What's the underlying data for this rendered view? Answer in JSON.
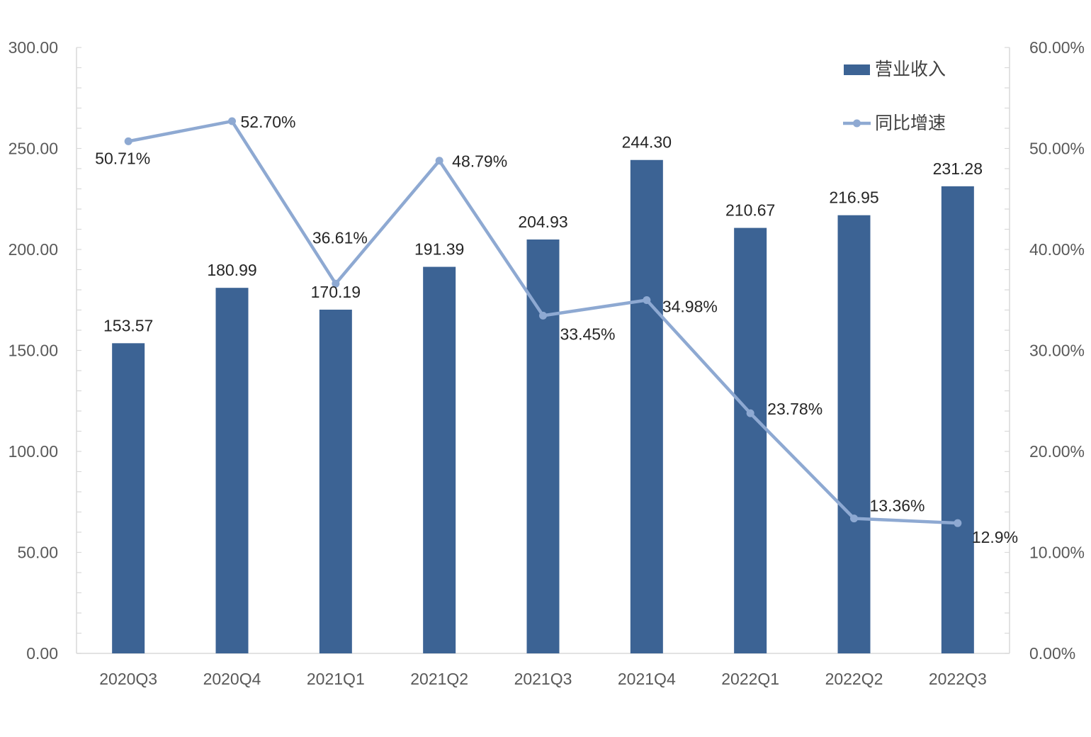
{
  "chart_data": {
    "type": "bar+line",
    "title": "",
    "categories": [
      "2020Q3",
      "2020Q4",
      "2021Q1",
      "2021Q2",
      "2021Q3",
      "2021Q4",
      "2022Q1",
      "2022Q2",
      "2022Q3"
    ],
    "series": [
      {
        "name": "营业收入",
        "type": "bar",
        "axis": "left",
        "color": "#3C6394",
        "values": [
          153.57,
          180.99,
          170.19,
          191.39,
          204.93,
          244.3,
          210.67,
          216.95,
          231.28
        ],
        "labels": [
          "153.57",
          "180.99",
          "170.19",
          "191.39",
          "204.93",
          "244.30",
          "210.67",
          "216.95",
          "231.28"
        ]
      },
      {
        "name": "同比增速",
        "type": "line",
        "axis": "right",
        "color": "#8EA9D2",
        "values": [
          50.71,
          52.7,
          36.61,
          48.79,
          33.45,
          34.98,
          23.78,
          13.36,
          12.9
        ],
        "labels": [
          "50.71%",
          "52.70%",
          "36.61%",
          "48.79%",
          "33.45%",
          "34.98%",
          "23.78%",
          "13.36%",
          "12.9%"
        ]
      }
    ],
    "y_left": {
      "ylim": [
        0,
        300
      ],
      "ticks": [
        0,
        50,
        100,
        150,
        200,
        250,
        300
      ],
      "tick_labels": [
        "0.00",
        "50.00",
        "100.00",
        "150.00",
        "200.00",
        "250.00",
        "300.00"
      ]
    },
    "y_right": {
      "ylim": [
        0,
        60
      ],
      "ticks": [
        0,
        10,
        20,
        30,
        40,
        50,
        60
      ],
      "tick_labels": [
        "0.00%",
        "10.00%",
        "20.00%",
        "30.00%",
        "40.00%",
        "50.00%",
        "60.00%"
      ]
    },
    "legend": {
      "position": "top-right",
      "entries": [
        "营业收入",
        "同比增速"
      ]
    },
    "grid": false
  }
}
